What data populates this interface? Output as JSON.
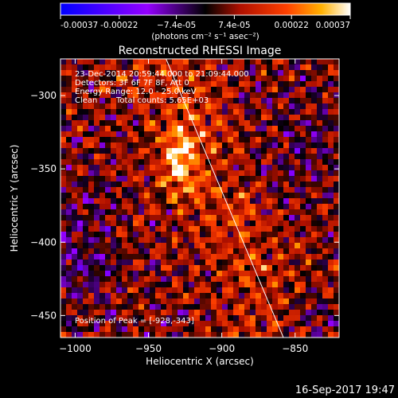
{
  "chart_data": {
    "type": "heatmap",
    "title": "Reconstructed RHESSI Image",
    "xlabel": "Heliocentric X (arcsec)",
    "ylabel": "Heliocentric Y (arcsec)",
    "xlim": [
      -1010,
      -820
    ],
    "ylim": [
      -465,
      -275
    ],
    "x_ticks": [
      -1000,
      -950,
      -900,
      -850
    ],
    "y_ticks": [
      -450,
      -400,
      -350,
      -300
    ],
    "x_tick_labels": [
      "−1000",
      "−950",
      "−900",
      "−850"
    ],
    "y_tick_labels": [
      "−450",
      "−400",
      "−350",
      "−300"
    ],
    "colorbar": {
      "min": -0.00037,
      "max": 0.00037,
      "ticks": [
        -0.00037,
        -0.00022,
        -7.4e-05,
        7.4e-05,
        0.00022,
        0.00037
      ],
      "tick_labels": [
        "-0.00037",
        "-0.00022",
        "−7.4e-05",
        "7.4e-05",
        "0.00022",
        "0.00037"
      ],
      "unit_label": "(photons cm⁻² s⁻¹ asec⁻²)"
    },
    "annotations": [
      "23-Dec-2014 20:59:44.000 to 21:09:44.000",
      "Detectors: 3F 6F 7F 8F, Att 0",
      "Energy Range: 12.0 - 25.0 keV",
      "Clean",
      "Total counts: 5.65E+03"
    ],
    "peak_label": "Position of Peak = [-928,-343]",
    "peak": [
      -928,
      -343
    ],
    "limb_line": {
      "from": [
        -938,
        -275
      ],
      "to": [
        -858,
        -465
      ]
    },
    "timestamp": "16-Sep-2017 19:47"
  }
}
